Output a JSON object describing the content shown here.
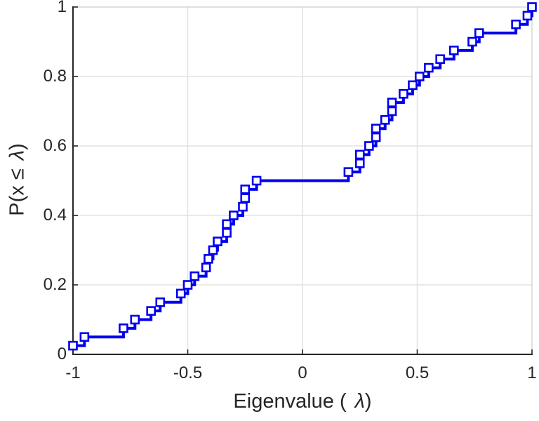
{
  "figure": {
    "background": "#ffffff",
    "kind": "matlab-style ecdf stairs plot"
  },
  "chart_data": {
    "type": "line",
    "subtype": "ecdf-stairs",
    "title": "",
    "xlabel": {
      "prefix": "Eigenvalue (",
      "symbol": "λ",
      "suffix": ")"
    },
    "ylabel": {
      "prefix": "P(x ≤ ",
      "symbol": "λ",
      "suffix": ")"
    },
    "xlim": [
      -1,
      1
    ],
    "ylim": [
      0,
      1
    ],
    "xticks": [
      -1,
      -0.5,
      0,
      0.5,
      1
    ],
    "xtick_labels": [
      "-1",
      "-0.5",
      "0",
      "0.5",
      "1"
    ],
    "yticks": [
      0,
      0.2,
      0.4,
      0.6,
      0.8,
      1
    ],
    "ytick_labels": [
      "0",
      "0.2",
      "0.4",
      "0.6",
      "0.8",
      "1"
    ],
    "grid": true,
    "legend": "none",
    "series": [
      {
        "name": "eigenvalue-ecdf",
        "color": "#0000ee",
        "line_width": 4,
        "marker": "open-square",
        "marker_size": 11,
        "marker_face": "#ffffff",
        "x": [
          -1.0,
          -0.95,
          -0.78,
          -0.73,
          -0.66,
          -0.62,
          -0.53,
          -0.5,
          -0.47,
          -0.42,
          -0.41,
          -0.39,
          -0.37,
          -0.33,
          -0.33,
          -0.3,
          -0.26,
          -0.25,
          -0.25,
          -0.2,
          0.2,
          0.25,
          0.25,
          0.29,
          0.32,
          0.32,
          0.36,
          0.39,
          0.39,
          0.44,
          0.48,
          0.51,
          0.55,
          0.6,
          0.66,
          0.74,
          0.77,
          0.93,
          0.98,
          1.0
        ],
        "y": [
          0.025,
          0.05,
          0.075,
          0.1,
          0.125,
          0.15,
          0.175,
          0.2,
          0.225,
          0.25,
          0.275,
          0.3,
          0.325,
          0.35,
          0.375,
          0.4,
          0.425,
          0.45,
          0.475,
          0.5,
          0.525,
          0.55,
          0.575,
          0.6,
          0.625,
          0.65,
          0.675,
          0.7,
          0.725,
          0.75,
          0.775,
          0.8,
          0.825,
          0.85,
          0.875,
          0.9,
          0.925,
          0.95,
          0.975,
          1.0
        ]
      }
    ]
  },
  "colors": {
    "line": "#0000ee",
    "grid": "#e2e2e2",
    "axis": "#262626",
    "box_top_right": "#cccccc",
    "text": "#262626",
    "background": "#ffffff"
  }
}
